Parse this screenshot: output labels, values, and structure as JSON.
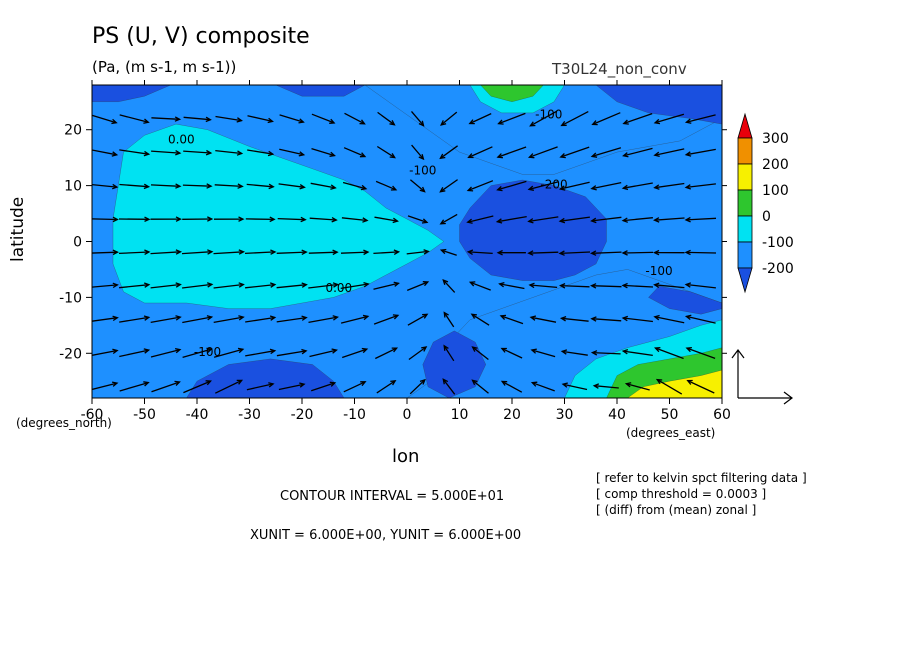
{
  "chart_data": {
    "type": "heatmap",
    "title": "PS (U, V) composite",
    "units_line": "(Pa, (m s-1, m s-1))",
    "run_label": "T30L24_non_conv",
    "xlabel": "lon",
    "ylabel": "latitude",
    "x_unit_label": "(degrees_east)",
    "y_unit_label": "(degrees_north)",
    "xlim": [
      -60,
      60
    ],
    "ylim": [
      -28,
      28
    ],
    "x_ticks": [
      -60,
      -50,
      -40,
      -30,
      -20,
      -10,
      0,
      10,
      20,
      30,
      40,
      50,
      60
    ],
    "y_ticks": [
      -20,
      -10,
      0,
      10,
      20
    ],
    "colorbar": {
      "levels": [
        "300",
        "200",
        "100",
        "0",
        "-100",
        "-200"
      ],
      "colors": [
        "#e8000b",
        "#f09000",
        "#f7f000",
        "#2ec62e",
        "#00e2f2",
        "#1e90ff",
        "#1a50e0"
      ]
    },
    "contour_labels": [
      {
        "text": "0.00",
        "lon": -43,
        "lat": 17.5
      },
      {
        "text": "-100",
        "lon": 3,
        "lat": 12
      },
      {
        "text": "-200",
        "lon": 28,
        "lat": 9.5
      },
      {
        "text": "0.00",
        "lon": -13,
        "lat": -9
      },
      {
        "text": "-100",
        "lon": 48,
        "lat": -6
      },
      {
        "text": "-100",
        "lon": -38,
        "lat": -20.5
      },
      {
        "text": "-100",
        "lon": 27,
        "lat": 22
      }
    ],
    "regions": [
      {
        "level": "-100",
        "poly": [
          [
            -60,
            28
          ],
          [
            -8,
            28
          ],
          [
            -2,
            24
          ],
          [
            4,
            20
          ],
          [
            10,
            16
          ],
          [
            16,
            14
          ],
          [
            22,
            12
          ],
          [
            28,
            12
          ],
          [
            34,
            14
          ],
          [
            40,
            16
          ],
          [
            46,
            17
          ],
          [
            52,
            18
          ],
          [
            56,
            20
          ],
          [
            60,
            22
          ],
          [
            60,
            -11
          ],
          [
            54,
            -9
          ],
          [
            48,
            -7
          ],
          [
            42,
            -5
          ],
          [
            36,
            -6
          ],
          [
            30,
            -8
          ],
          [
            24,
            -10
          ],
          [
            18,
            -12
          ],
          [
            12,
            -14
          ],
          [
            8,
            -18
          ],
          [
            6,
            -24
          ],
          [
            0,
            -28
          ],
          [
            -60,
            -28
          ]
        ]
      },
      {
        "level": "0",
        "poly": [
          [
            -54,
            16
          ],
          [
            -50,
            19
          ],
          [
            -44,
            21
          ],
          [
            -38,
            20
          ],
          [
            -30,
            17
          ],
          [
            -24,
            15
          ],
          [
            -18,
            13
          ],
          [
            -12,
            11
          ],
          [
            -8,
            9
          ],
          [
            -4,
            6
          ],
          [
            0,
            4
          ],
          [
            4,
            2
          ],
          [
            7,
            0
          ],
          [
            4,
            -2
          ],
          [
            0,
            -4
          ],
          [
            -4,
            -6
          ],
          [
            -8,
            -8
          ],
          [
            -14,
            -10
          ],
          [
            -20,
            -11
          ],
          [
            -26,
            -12
          ],
          [
            -34,
            -12
          ],
          [
            -42,
            -11
          ],
          [
            -50,
            -11
          ],
          [
            -54,
            -9
          ],
          [
            -56,
            -4
          ],
          [
            -56,
            4
          ],
          [
            -55,
            10
          ]
        ]
      },
      {
        "level": "-200",
        "poly": [
          [
            -60,
            28
          ],
          [
            -45,
            28
          ],
          [
            -50,
            26
          ],
          [
            -55,
            25
          ],
          [
            -60,
            25
          ]
        ]
      },
      {
        "level": "-200",
        "poly": [
          [
            -25,
            28
          ],
          [
            -8,
            28
          ],
          [
            -12,
            26
          ],
          [
            -20,
            26
          ]
        ]
      },
      {
        "level": "-200",
        "poly": [
          [
            2,
            28
          ],
          [
            36,
            28
          ],
          [
            40,
            25
          ],
          [
            46,
            23
          ],
          [
            54,
            22
          ],
          [
            60,
            21
          ],
          [
            60,
            28
          ]
        ]
      },
      {
        "level": "-200",
        "poly": [
          [
            12,
            6
          ],
          [
            16,
            10
          ],
          [
            22,
            11
          ],
          [
            28,
            10
          ],
          [
            34,
            8
          ],
          [
            38,
            4
          ],
          [
            38,
            0
          ],
          [
            36,
            -4
          ],
          [
            32,
            -6
          ],
          [
            28,
            -7
          ],
          [
            22,
            -7
          ],
          [
            16,
            -6
          ],
          [
            12,
            -3
          ],
          [
            10,
            0
          ],
          [
            10,
            3
          ]
        ]
      },
      {
        "level": "-200",
        "poly": [
          [
            3,
            -22
          ],
          [
            5,
            -18
          ],
          [
            9,
            -16
          ],
          [
            13,
            -18
          ],
          [
            15,
            -22
          ],
          [
            13,
            -26
          ],
          [
            8,
            -28
          ],
          [
            4,
            -26
          ]
        ]
      },
      {
        "level": "-200",
        "poly": [
          [
            -42,
            -28
          ],
          [
            -40,
            -25
          ],
          [
            -34,
            -22
          ],
          [
            -26,
            -21
          ],
          [
            -18,
            -22
          ],
          [
            -14,
            -25
          ],
          [
            -12,
            -28
          ]
        ]
      },
      {
        "level": "-200",
        "poly": [
          [
            60,
            -11
          ],
          [
            54,
            -9
          ],
          [
            48,
            -8
          ],
          [
            46,
            -10
          ],
          [
            50,
            -12
          ],
          [
            56,
            -13
          ],
          [
            60,
            -12
          ]
        ]
      },
      {
        "level": "0",
        "poly": [
          [
            12,
            28
          ],
          [
            14,
            25
          ],
          [
            18,
            23
          ],
          [
            24,
            23
          ],
          [
            28,
            25
          ],
          [
            30,
            28
          ]
        ]
      },
      {
        "level": "100",
        "poly": [
          [
            14,
            28
          ],
          [
            16,
            26
          ],
          [
            20,
            25
          ],
          [
            24,
            26
          ],
          [
            26,
            28
          ]
        ]
      },
      {
        "level": "0",
        "poly": [
          [
            30,
            -28
          ],
          [
            32,
            -24
          ],
          [
            36,
            -21
          ],
          [
            42,
            -19
          ],
          [
            50,
            -17
          ],
          [
            56,
            -15
          ],
          [
            60,
            -14
          ],
          [
            60,
            -28
          ]
        ]
      },
      {
        "level": "100",
        "poly": [
          [
            38,
            -28
          ],
          [
            40,
            -24
          ],
          [
            44,
            -22
          ],
          [
            50,
            -21
          ],
          [
            56,
            -20
          ],
          [
            60,
            -19
          ],
          [
            60,
            -28
          ]
        ]
      },
      {
        "level": "200",
        "poly": [
          [
            42,
            -28
          ],
          [
            45,
            -26
          ],
          [
            50,
            -25
          ],
          [
            56,
            -24
          ],
          [
            60,
            -23
          ],
          [
            60,
            -28
          ]
        ]
      }
    ],
    "vector_field": {
      "spacing_deg": 6,
      "reference_vector": {
        "xunit": 6.0,
        "yunit": 6.0
      }
    },
    "annotations": {
      "contour_interval": "CONTOUR INTERVAL = 5.000E+01",
      "units_line": "XUNIT = 6.000E+00, YUNIT = 6.000E+00",
      "notes": [
        "[ refer to kelvin spct filtering data ]",
        "[ comp threshold = 0.0003 ]",
        "[ (diff) from (mean) zonal ]"
      ]
    }
  }
}
